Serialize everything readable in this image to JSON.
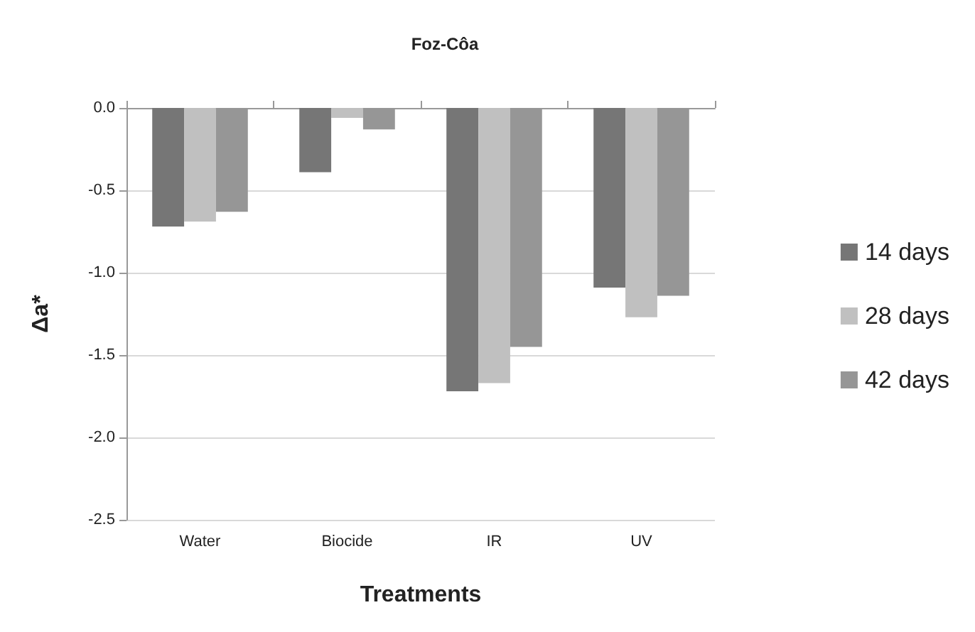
{
  "chart_data": {
    "type": "bar",
    "title": "Foz-Côa",
    "xlabel": "Treatments",
    "ylabel": "Δa*",
    "categories": [
      "Water",
      "Biocide",
      "IR",
      "UV"
    ],
    "series": [
      {
        "name": "14 days",
        "color": "#767676",
        "values": [
          -0.72,
          -0.39,
          -1.72,
          -1.09
        ]
      },
      {
        "name": "28 days",
        "color": "#c0c0c0",
        "values": [
          -0.69,
          -0.06,
          -1.67,
          -1.27
        ]
      },
      {
        "name": "42 days",
        "color": "#969696",
        "values": [
          -0.63,
          -0.13,
          -1.45,
          -1.14
        ]
      }
    ],
    "ylim": [
      -2.5,
      0
    ],
    "yticks": [
      {
        "value": -2.5,
        "label": "-2.5"
      },
      {
        "value": -2.0,
        "label": "-2.0"
      },
      {
        "value": -1.5,
        "label": "-1.5"
      },
      {
        "value": -1.0,
        "label": "-1.0"
      },
      {
        "value": -0.5,
        "label": "-0.5"
      },
      {
        "value": 0,
        "label": "0.0"
      }
    ],
    "grid": "y",
    "legend": "right"
  }
}
